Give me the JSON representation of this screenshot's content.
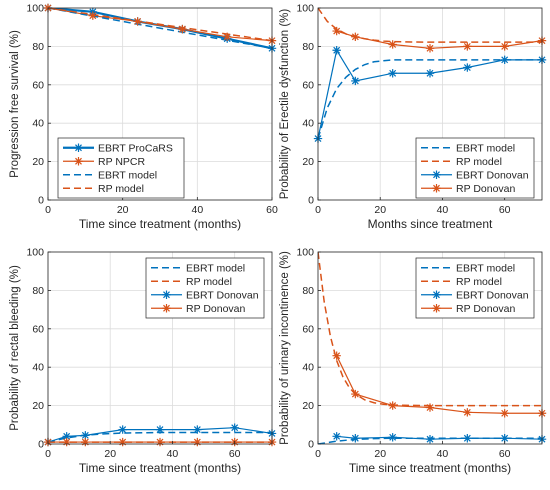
{
  "colors": {
    "ebrt": "#0072BD",
    "rp": "#D95319",
    "axis": "#262626",
    "grid": "#dcdcdc"
  },
  "chart_data": [
    {
      "type": "line",
      "xlabel": "Time since treatment (months)",
      "ylabel": "Progression free survival (%)",
      "xlim": [
        0,
        60
      ],
      "ylim": [
        0,
        100
      ],
      "xticks": [
        0,
        20,
        40,
        60
      ],
      "yticks": [
        0,
        20,
        40,
        60,
        80,
        100
      ],
      "grid": true,
      "legend_position": "bottom-left",
      "series": [
        {
          "name": "EBRT ProCaRS",
          "color": "#0072BD",
          "style": "solid",
          "marker": "star",
          "width": 2.2,
          "x": [
            0,
            12,
            24,
            36,
            48,
            60
          ],
          "y": [
            100,
            98,
            93,
            89,
            84,
            79
          ]
        },
        {
          "name": "RP NPCR",
          "color": "#D95319",
          "style": "solid",
          "marker": "star",
          "width": 1.2,
          "x": [
            0,
            12,
            24,
            36,
            48,
            60
          ],
          "y": [
            100,
            96,
            93,
            89,
            85,
            83
          ]
        },
        {
          "name": "EBRT model",
          "color": "#0072BD",
          "style": "dashed",
          "marker": "none",
          "width": 1.5,
          "x": [
            0,
            60
          ],
          "y": [
            100,
            79
          ]
        },
        {
          "name": "RP model",
          "color": "#D95319",
          "style": "dashed",
          "marker": "none",
          "width": 1.5,
          "x": [
            0,
            60
          ],
          "y": [
            100,
            83
          ]
        }
      ]
    },
    {
      "type": "line",
      "xlabel": "Months since treatment",
      "ylabel": "Probability of Erectile dysfunction (%)",
      "xlim": [
        0,
        72
      ],
      "ylim": [
        0,
        100
      ],
      "xticks": [
        0,
        20,
        40,
        60
      ],
      "yticks": [
        0,
        20,
        40,
        60,
        80,
        100
      ],
      "grid": true,
      "legend_position": "bottom-right",
      "series": [
        {
          "name": "EBRT model",
          "color": "#0072BD",
          "style": "dashed",
          "marker": "none",
          "width": 1.5,
          "x": [
            0,
            3,
            6,
            9,
            12,
            15,
            18,
            21,
            24,
            30,
            36,
            48,
            60,
            72
          ],
          "y": [
            32,
            48,
            58,
            64,
            68,
            70.5,
            72,
            72.5,
            73,
            73,
            73,
            73,
            73,
            73
          ]
        },
        {
          "name": "RP model",
          "color": "#D95319",
          "style": "dashed",
          "marker": "none",
          "width": 1.5,
          "x": [
            0,
            3,
            6,
            9,
            12,
            15,
            18,
            21,
            24,
            30,
            36,
            48,
            60,
            72
          ],
          "y": [
            100,
            93,
            89,
            86.5,
            85,
            84,
            83.3,
            82.8,
            82.5,
            82.3,
            82.2,
            82.2,
            82.2,
            82.2
          ]
        },
        {
          "name": "EBRT Donovan",
          "color": "#0072BD",
          "style": "solid",
          "marker": "star",
          "width": 1.2,
          "x": [
            0,
            6,
            12,
            24,
            36,
            48,
            60,
            72
          ],
          "y": [
            32,
            78,
            62,
            66,
            66,
            69,
            73,
            73
          ]
        },
        {
          "name": "RP Donovan",
          "color": "#D95319",
          "style": "solid",
          "marker": "star",
          "width": 1.2,
          "x": [
            6,
            12,
            24,
            36,
            48,
            60,
            72
          ],
          "y": [
            88,
            85,
            81,
            79,
            80,
            80,
            83
          ]
        }
      ]
    },
    {
      "type": "line",
      "xlabel": "Time since treatment (months)",
      "ylabel": "Probability of rectal bleeding (%)",
      "xlim": [
        0,
        72
      ],
      "ylim": [
        0,
        100
      ],
      "xticks": [
        0,
        20,
        40,
        60
      ],
      "yticks": [
        0,
        20,
        40,
        60,
        80,
        100
      ],
      "grid": true,
      "legend_position": "top-right",
      "series": [
        {
          "name": "EBRT model",
          "color": "#0072BD",
          "style": "dashed",
          "marker": "none",
          "width": 1.5,
          "x": [
            0,
            6,
            12,
            18,
            24,
            36,
            48,
            60,
            72
          ],
          "y": [
            1,
            3.2,
            4.6,
            5.3,
            5.7,
            6,
            6,
            6,
            6
          ]
        },
        {
          "name": "RP model",
          "color": "#D95319",
          "style": "dashed",
          "marker": "none",
          "width": 1.5,
          "x": [
            0,
            72
          ],
          "y": [
            1,
            1
          ]
        },
        {
          "name": "EBRT Donovan",
          "color": "#0072BD",
          "style": "solid",
          "marker": "star",
          "width": 1.2,
          "x": [
            0,
            6,
            12,
            24,
            36,
            48,
            60,
            72
          ],
          "y": [
            1,
            4,
            4.5,
            7.5,
            7.5,
            7.5,
            8.5,
            5.5
          ]
        },
        {
          "name": "RP Donovan",
          "color": "#D95319",
          "style": "solid",
          "marker": "star",
          "width": 1.2,
          "x": [
            0,
            6,
            12,
            24,
            36,
            48,
            60,
            72
          ],
          "y": [
            1,
            1,
            1,
            1,
            1,
            1,
            1,
            1
          ]
        }
      ]
    },
    {
      "type": "line",
      "xlabel": "Time since treatment (months)",
      "ylabel": "Probability of urinary incontinence (%)",
      "xlim": [
        0,
        72
      ],
      "ylim": [
        0,
        100
      ],
      "xticks": [
        0,
        20,
        40,
        60
      ],
      "yticks": [
        0,
        20,
        40,
        60,
        80,
        100
      ],
      "grid": true,
      "legend_position": "top-right",
      "series": [
        {
          "name": "EBRT model",
          "color": "#0072BD",
          "style": "dashed",
          "marker": "none",
          "width": 1.5,
          "x": [
            0,
            6,
            12,
            18,
            24,
            36,
            48,
            60,
            72
          ],
          "y": [
            0,
            1.5,
            2.4,
            2.8,
            3,
            3,
            3,
            3,
            3
          ]
        },
        {
          "name": "RP model",
          "color": "#D95319",
          "style": "dashed",
          "marker": "none",
          "width": 1.5,
          "x": [
            0,
            2,
            4,
            6,
            8,
            10,
            12,
            15,
            18,
            21,
            24,
            30,
            36,
            48,
            60,
            72
          ],
          "y": [
            100,
            74,
            56,
            43.5,
            35,
            29.5,
            26,
            23,
            21.5,
            20.7,
            20.3,
            20.1,
            20,
            20,
            20,
            20
          ]
        },
        {
          "name": "EBRT Donovan",
          "color": "#0072BD",
          "style": "solid",
          "marker": "star",
          "width": 1.2,
          "x": [
            6,
            12,
            24,
            36,
            48,
            60,
            72
          ],
          "y": [
            4,
            3,
            3.5,
            2.5,
            3,
            3,
            2.5
          ]
        },
        {
          "name": "RP Donovan",
          "color": "#D95319",
          "style": "solid",
          "marker": "star",
          "width": 1.2,
          "x": [
            6,
            12,
            24,
            36,
            48,
            60,
            72
          ],
          "y": [
            46,
            26,
            20,
            19,
            16.5,
            16,
            16
          ]
        }
      ]
    }
  ]
}
